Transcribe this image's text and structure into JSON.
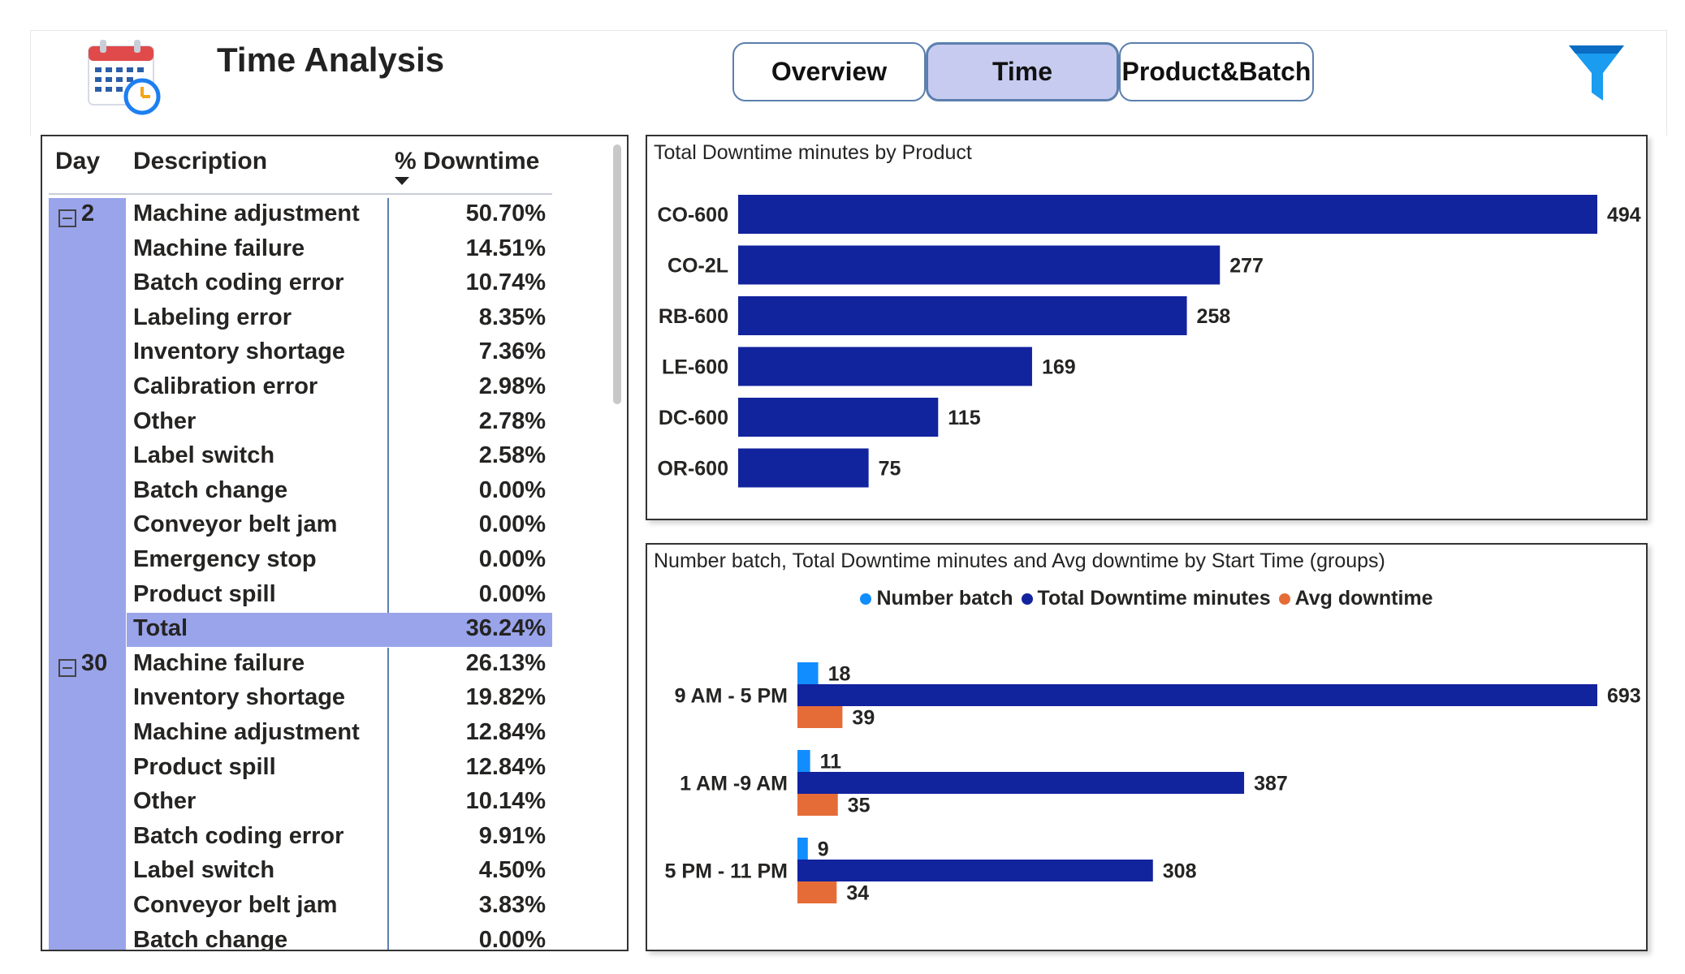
{
  "header": {
    "title": "Time Analysis",
    "nav": [
      {
        "label": "Overview",
        "active": false
      },
      {
        "label": "Time",
        "active": true
      },
      {
        "label": "Product&Batch",
        "active": false
      }
    ]
  },
  "table": {
    "columns": {
      "day": "Day",
      "description": "Description",
      "downtime": "% Downtime"
    },
    "groups": [
      {
        "day": "2",
        "rows": [
          {
            "description": "Machine adjustment",
            "value": "50.70%"
          },
          {
            "description": "Machine failure",
            "value": "14.51%"
          },
          {
            "description": "Batch coding error",
            "value": "10.74%"
          },
          {
            "description": "Labeling error",
            "value": "8.35%"
          },
          {
            "description": "Inventory shortage",
            "value": "7.36%"
          },
          {
            "description": "Calibration error",
            "value": "2.98%"
          },
          {
            "description": "Other",
            "value": "2.78%"
          },
          {
            "description": "Label switch",
            "value": "2.58%"
          },
          {
            "description": "Batch change",
            "value": "0.00%"
          },
          {
            "description": "Conveyor belt jam",
            "value": "0.00%"
          },
          {
            "description": "Emergency stop",
            "value": "0.00%"
          },
          {
            "description": "Product spill",
            "value": "0.00%"
          }
        ],
        "total": {
          "label": "Total",
          "value": "36.24%"
        }
      },
      {
        "day": "30",
        "rows": [
          {
            "description": "Machine failure",
            "value": "26.13%"
          },
          {
            "description": "Inventory shortage",
            "value": "19.82%"
          },
          {
            "description": "Machine adjustment",
            "value": "12.84%"
          },
          {
            "description": "Product spill",
            "value": "12.84%"
          },
          {
            "description": "Other",
            "value": "10.14%"
          },
          {
            "description": "Batch coding error",
            "value": "9.91%"
          },
          {
            "description": "Label switch",
            "value": "4.50%"
          },
          {
            "description": "Conveyor belt jam",
            "value": "3.83%"
          },
          {
            "description": "Batch change",
            "value": "0.00%"
          }
        ]
      }
    ]
  },
  "chart_data": [
    {
      "type": "bar",
      "orientation": "horizontal",
      "title": "Total Downtime minutes by Product",
      "categories": [
        "CO-600",
        "CO-2L",
        "RB-600",
        "LE-600",
        "DC-600",
        "OR-600"
      ],
      "values": [
        494,
        277,
        258,
        169,
        115,
        75
      ],
      "color": "#12239e",
      "xlim": [
        0,
        494
      ]
    },
    {
      "type": "bar",
      "orientation": "horizontal",
      "title": "Number batch, Total Downtime minutes and Avg downtime by Start Time (groups)",
      "legend_position": "top-center",
      "categories": [
        "9 AM - 5 PM",
        "1 AM -9 AM",
        "5 PM - 11 PM"
      ],
      "series": [
        {
          "name": "Number batch",
          "values": [
            18,
            11,
            9
          ],
          "color": "#118dff"
        },
        {
          "name": "Total Downtime minutes",
          "values": [
            693,
            387,
            308
          ],
          "color": "#12239e"
        },
        {
          "name": "Avg downtime",
          "values": [
            39,
            35,
            34
          ],
          "color": "#e66c37"
        }
      ],
      "xlim": [
        0,
        693
      ]
    }
  ]
}
